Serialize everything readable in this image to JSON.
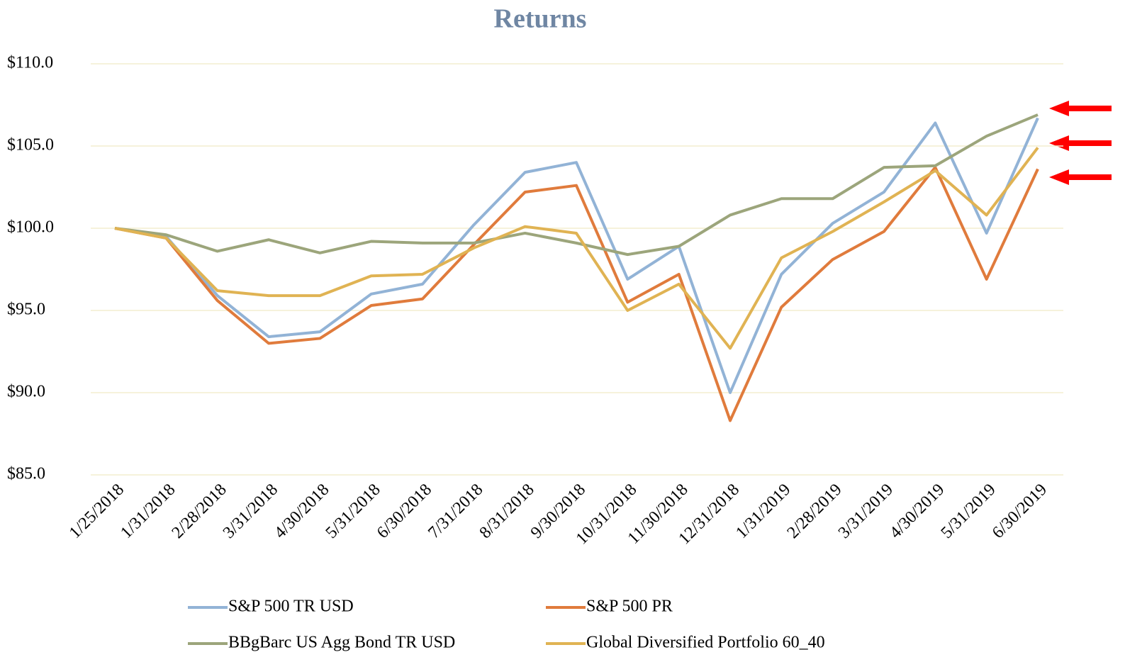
{
  "chart_data": {
    "type": "line",
    "title": "Returns",
    "categories": [
      "1/25/2018",
      "1/31/2018",
      "2/28/2018",
      "3/31/2018",
      "4/30/2018",
      "5/31/2018",
      "6/30/2018",
      "7/31/2018",
      "8/31/2018",
      "9/30/2018",
      "10/31/2018",
      "11/30/2018",
      "12/31/2018",
      "1/31/2019",
      "2/28/2019",
      "3/31/2019",
      "4/30/2019",
      "5/31/2019",
      "6/30/2019"
    ],
    "series": [
      {
        "name": "S&P 500 TR USD",
        "color": "#92b3d6",
        "values": [
          100.0,
          99.5,
          95.9,
          93.4,
          93.7,
          96.0,
          96.6,
          100.2,
          103.4,
          104.0,
          96.9,
          98.9,
          90.0,
          97.2,
          100.3,
          102.2,
          106.4,
          99.7,
          106.7
        ]
      },
      {
        "name": "S&P 500 PR",
        "color": "#e07b3c",
        "values": [
          100.0,
          99.4,
          95.6,
          93.0,
          93.3,
          95.3,
          95.7,
          99.0,
          102.2,
          102.6,
          95.5,
          97.2,
          88.3,
          95.2,
          98.1,
          99.8,
          103.7,
          96.9,
          103.6
        ]
      },
      {
        "name": "BBgBarc US Agg Bond TR USD",
        "color": "#9ca57b",
        "values": [
          100.0,
          99.6,
          98.6,
          99.3,
          98.5,
          99.2,
          99.1,
          99.1,
          99.7,
          99.1,
          98.4,
          98.9,
          100.8,
          101.8,
          101.8,
          103.7,
          103.8,
          105.6,
          106.9
        ]
      },
      {
        "name": "Global Diversified Portfolio 60_40",
        "color": "#e0b353",
        "values": [
          100.0,
          99.4,
          96.2,
          95.9,
          95.9,
          97.1,
          97.2,
          98.8,
          100.1,
          99.7,
          95.0,
          96.6,
          92.7,
          98.2,
          99.8,
          101.6,
          103.5,
          100.8,
          104.9
        ]
      }
    ],
    "ylim": [
      85,
      110
    ],
    "yticks": [
      {
        "value": 85,
        "label": "$85.0"
      },
      {
        "value": 90,
        "label": "$90.0"
      },
      {
        "value": 95,
        "label": "$95.0"
      },
      {
        "value": 100,
        "label": "$100.0"
      },
      {
        "value": 105,
        "label": "$105.0"
      },
      {
        "value": 110,
        "label": "$110.0"
      }
    ],
    "grid": true
  }
}
